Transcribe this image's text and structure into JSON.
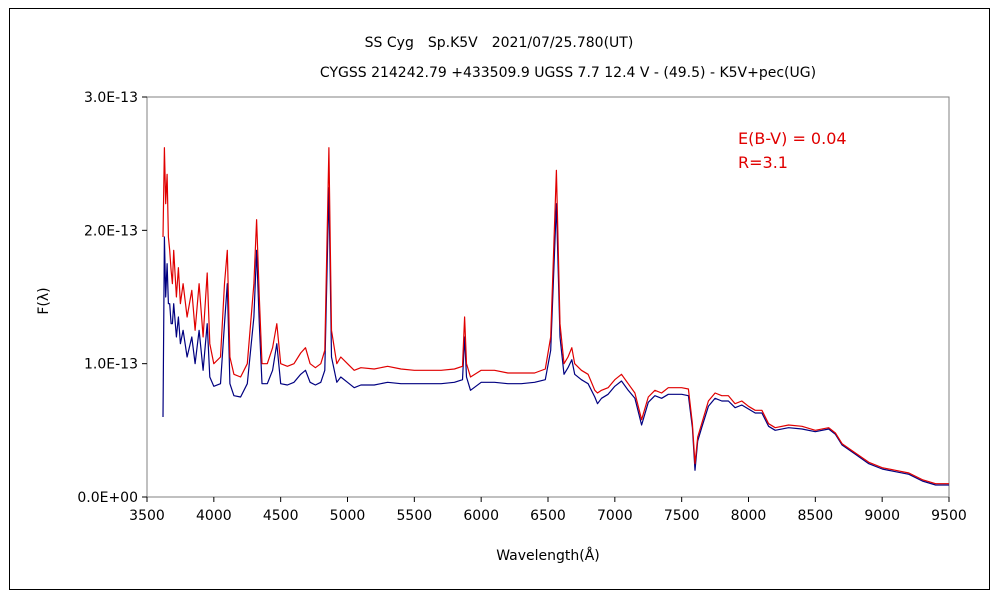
{
  "chart_data": {
    "type": "line",
    "title": "SS Cyg　Sp.K5V　2021/07/25.780(UT)",
    "subtitle": "CYGSS 214242.79 +433509.9 UGSS 7.7 12.4 V - (49.5) - K5V+pec(UG)",
    "xlabel": "Wavelength(Å)",
    "ylabel": "F(λ)",
    "xlim": [
      3500,
      9500
    ],
    "ylim": [
      0,
      3e-13
    ],
    "x_ticks": [
      "3500",
      "4000",
      "4500",
      "5000",
      "5500",
      "6000",
      "6500",
      "7000",
      "7500",
      "8000",
      "8500",
      "9000",
      "9500"
    ],
    "y_ticks": [
      "0.0E+00",
      "1.0E-13",
      "2.0E-13",
      "3.0E-13"
    ],
    "grid": false,
    "annotations": [
      "E(B-V) = 0.04",
      "R=3.1"
    ],
    "series": [
      {
        "color": "#e00000",
        "x": [
          3620,
          3630,
          3640,
          3650,
          3660,
          3670,
          3680,
          3690,
          3700,
          3720,
          3735,
          3750,
          3770,
          3800,
          3835,
          3860,
          3890,
          3920,
          3950,
          3970,
          4000,
          4050,
          4080,
          4101,
          4120,
          4150,
          4200,
          4250,
          4300,
          4320,
          4340,
          4360,
          4400,
          4440,
          4471,
          4500,
          4550,
          4600,
          4650,
          4686,
          4720,
          4760,
          4800,
          4830,
          4861,
          4880,
          4920,
          4950,
          5000,
          5050,
          5100,
          5200,
          5300,
          5400,
          5500,
          5600,
          5700,
          5800,
          5860,
          5876,
          5890,
          5920,
          6000,
          6100,
          6200,
          6300,
          6400,
          6480,
          6520,
          6563,
          6590,
          6620,
          6650,
          6678,
          6700,
          6750,
          6800,
          6850,
          6870,
          6900,
          6950,
          7000,
          7050,
          7100,
          7150,
          7200,
          7250,
          7300,
          7350,
          7400,
          7450,
          7500,
          7550,
          7580,
          7600,
          7620,
          7650,
          7700,
          7750,
          7800,
          7850,
          7900,
          7950,
          8000,
          8050,
          8100,
          8150,
          8200,
          8300,
          8400,
          8500,
          8600,
          8650,
          8700,
          8800,
          8900,
          9000,
          9100,
          9200,
          9300,
          9400,
          9500
        ],
        "values": [
          1.95e-13,
          2.62e-13,
          2.2e-13,
          2.42e-13,
          1.95e-13,
          1.85e-13,
          1.7e-13,
          1.6e-13,
          1.85e-13,
          1.5e-13,
          1.72e-13,
          1.45e-13,
          1.6e-13,
          1.35e-13,
          1.55e-13,
          1.25e-13,
          1.6e-13,
          1.2e-13,
          1.68e-13,
          1.15e-13,
          1e-13,
          1.05e-13,
          1.6e-13,
          1.85e-13,
          1.05e-13,
          9.2e-14,
          9e-14,
          1e-13,
          1.6e-13,
          2.08e-13,
          1.5e-13,
          1e-13,
          1e-13,
          1.12e-13,
          1.3e-13,
          1e-13,
          9.8e-14,
          1e-13,
          1.08e-13,
          1.12e-13,
          1e-13,
          9.7e-14,
          1e-13,
          1.1e-13,
          2.62e-13,
          1.25e-13,
          1e-13,
          1.05e-13,
          1e-13,
          9.5e-14,
          9.7e-14,
          9.6e-14,
          9.8e-14,
          9.6e-14,
          9.5e-14,
          9.5e-14,
          9.5e-14,
          9.6e-14,
          9.8e-14,
          1.35e-13,
          1e-13,
          9e-14,
          9.5e-14,
          9.5e-14,
          9.3e-14,
          9.3e-14,
          9.3e-14,
          9.6e-14,
          1.2e-13,
          2.45e-13,
          1.3e-13,
          1e-13,
          1.05e-13,
          1.12e-13,
          1e-13,
          9.5e-14,
          9.2e-14,
          8e-14,
          7.8e-14,
          8e-14,
          8.2e-14,
          8.8e-14,
          9.2e-14,
          8.5e-14,
          7.8e-14,
          5.8e-14,
          7.5e-14,
          8e-14,
          7.8e-14,
          8.2e-14,
          8.2e-14,
          8.2e-14,
          8.1e-14,
          5.5e-14,
          2.5e-14,
          4.5e-14,
          5.5e-14,
          7.2e-14,
          7.8e-14,
          7.6e-14,
          7.6e-14,
          7e-14,
          7.2e-14,
          6.8e-14,
          6.5e-14,
          6.5e-14,
          5.5e-14,
          5.2e-14,
          5.4e-14,
          5.3e-14,
          5e-14,
          5.2e-14,
          4.8e-14,
          4e-14,
          3.3e-14,
          2.6e-14,
          2.2e-14,
          2e-14,
          1.8e-14,
          1.3e-14,
          1e-14,
          1e-14
        ]
      },
      {
        "color": "#000080",
        "x": [
          3620,
          3630,
          3640,
          3650,
          3660,
          3670,
          3680,
          3690,
          3700,
          3720,
          3735,
          3750,
          3770,
          3800,
          3835,
          3860,
          3890,
          3920,
          3950,
          3970,
          4000,
          4050,
          4080,
          4101,
          4120,
          4150,
          4200,
          4250,
          4300,
          4320,
          4340,
          4360,
          4400,
          4440,
          4471,
          4500,
          4550,
          4600,
          4650,
          4686,
          4720,
          4760,
          4800,
          4830,
          4861,
          4880,
          4920,
          4950,
          5000,
          5050,
          5100,
          5200,
          5300,
          5400,
          5500,
          5600,
          5700,
          5800,
          5860,
          5876,
          5890,
          5920,
          6000,
          6100,
          6200,
          6300,
          6400,
          6480,
          6520,
          6563,
          6590,
          6620,
          6650,
          6678,
          6700,
          6750,
          6800,
          6850,
          6870,
          6900,
          6950,
          7000,
          7050,
          7100,
          7150,
          7200,
          7250,
          7300,
          7350,
          7400,
          7450,
          7500,
          7550,
          7580,
          7600,
          7620,
          7650,
          7700,
          7750,
          7800,
          7850,
          7900,
          7950,
          8000,
          8050,
          8100,
          8150,
          8200,
          8300,
          8400,
          8500,
          8600,
          8650,
          8700,
          8800,
          8900,
          9000,
          9100,
          9200,
          9300,
          9400,
          9500
        ],
        "values": [
          6e-14,
          1.95e-13,
          1.5e-13,
          1.75e-13,
          1.45e-13,
          1.45e-13,
          1.3e-13,
          1.3e-13,
          1.45e-13,
          1.2e-13,
          1.35e-13,
          1.15e-13,
          1.25e-13,
          1.05e-13,
          1.2e-13,
          1e-13,
          1.25e-13,
          9.5e-14,
          1.3e-13,
          9e-14,
          8.3e-14,
          8.5e-14,
          1.3e-13,
          1.6e-13,
          8.5e-14,
          7.6e-14,
          7.5e-14,
          8.5e-14,
          1.35e-13,
          1.85e-13,
          1.3e-13,
          8.5e-14,
          8.5e-14,
          9.5e-14,
          1.15e-13,
          8.5e-14,
          8.4e-14,
          8.6e-14,
          9.2e-14,
          9.5e-14,
          8.6e-14,
          8.4e-14,
          8.6e-14,
          9.5e-14,
          2.32e-13,
          1.05e-13,
          8.6e-14,
          9e-14,
          8.6e-14,
          8.2e-14,
          8.4e-14,
          8.4e-14,
          8.6e-14,
          8.5e-14,
          8.5e-14,
          8.5e-14,
          8.5e-14,
          8.6e-14,
          8.8e-14,
          1.2e-13,
          9e-14,
          8e-14,
          8.6e-14,
          8.6e-14,
          8.5e-14,
          8.5e-14,
          8.6e-14,
          8.8e-14,
          1.1e-13,
          2.2e-13,
          1.2e-13,
          9.2e-14,
          9.7e-14,
          1.03e-13,
          9.2e-14,
          8.8e-14,
          8.5e-14,
          7.5e-14,
          7e-14,
          7.4e-14,
          7.7e-14,
          8.3e-14,
          8.7e-14,
          8e-14,
          7.4e-14,
          5.4e-14,
          7.1e-14,
          7.6e-14,
          7.4e-14,
          7.7e-14,
          7.7e-14,
          7.7e-14,
          7.6e-14,
          5.2e-14,
          2e-14,
          4.2e-14,
          5.2e-14,
          6.8e-14,
          7.4e-14,
          7.2e-14,
          7.2e-14,
          6.7e-14,
          6.9e-14,
          6.6e-14,
          6.3e-14,
          6.3e-14,
          5.3e-14,
          5e-14,
          5.2e-14,
          5.1e-14,
          4.9e-14,
          5.1e-14,
          4.7e-14,
          3.9e-14,
          3.2e-14,
          2.5e-14,
          2.1e-14,
          1.9e-14,
          1.7e-14,
          1.2e-14,
          9e-15,
          9e-15
        ]
      }
    ]
  }
}
